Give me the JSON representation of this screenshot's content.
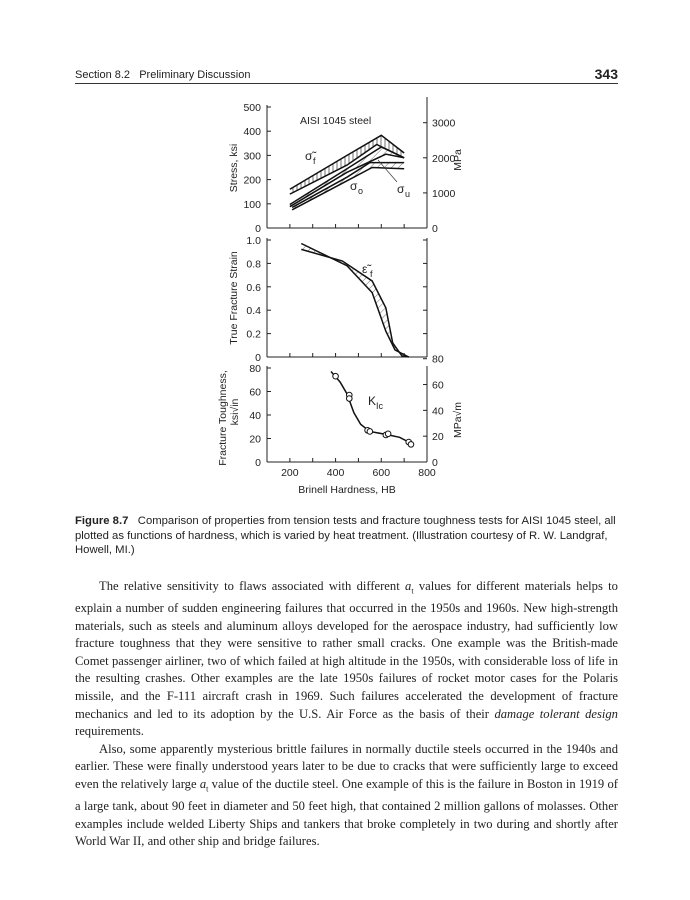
{
  "header": {
    "section": "Section 8.2   Preliminary Discussion",
    "page_number": "343"
  },
  "figure": {
    "material_label": "AISI 1045 steel",
    "top": {
      "ylabel": "Stress, ksi",
      "y2label": "MPa",
      "yticks": [
        "0",
        "100",
        "200",
        "300",
        "400",
        "500"
      ],
      "y2ticks": [
        "0",
        "1000",
        "2000",
        "3000"
      ],
      "labels": {
        "sigma_f": "σ̃",
        "sigma_f_sub": "f",
        "sigma_o": "σ",
        "sigma_o_sub": "o",
        "sigma_u": "σ",
        "sigma_u_sub": "u"
      }
    },
    "middle": {
      "ylabel": "True Fracture Strain",
      "yticks": [
        "0",
        "0.2",
        "0.4",
        "0.6",
        "0.8",
        "1.0"
      ],
      "label": "ε̃",
      "label_sub": "f"
    },
    "bottom": {
      "ylabel1": "Fracture Toughness,",
      "ylabel2": "ksi√in",
      "y2label": "MPa√m",
      "yticks": [
        "0",
        "20",
        "40",
        "60",
        "80"
      ],
      "y2ticks": [
        "0",
        "20",
        "40",
        "60",
        "80"
      ],
      "label": "K",
      "label_sub": "Ic"
    },
    "xticks": [
      "200",
      "400",
      "600",
      "800"
    ],
    "xlabel": "Brinell Hardness, HB"
  },
  "chart_data": {
    "type": "line",
    "x_range": [
      100,
      800
    ],
    "kic_points": [
      [
        400,
        73
      ],
      [
        460,
        57
      ],
      [
        460,
        54
      ],
      [
        540,
        27
      ],
      [
        550,
        26
      ],
      [
        620,
        23
      ],
      [
        630,
        24
      ],
      [
        720,
        17
      ],
      [
        730,
        15
      ]
    ],
    "kic_curve": [
      [
        380,
        77
      ],
      [
        420,
        68
      ],
      [
        450,
        58
      ],
      [
        480,
        42
      ],
      [
        510,
        32
      ],
      [
        550,
        26
      ],
      [
        620,
        23.5
      ],
      [
        680,
        21
      ],
      [
        740,
        15
      ]
    ],
    "ylim_stress": [
      0,
      500
    ],
    "ylim_strain": [
      0,
      1
    ],
    "ylim_kic": [
      0,
      80
    ]
  },
  "caption": {
    "label": "Figure 8.7",
    "text": "Comparison of properties from tension tests and fracture toughness tests for AISI 1045 steel, all plotted as functions of hardness, which is varied by heat treatment. (Illustration courtesy of R. W. Landgraf, Howell, MI.)"
  },
  "paragraphs": [
    {
      "a": "The relative sensitivity to flaws associated with different ",
      "var": "a",
      "sub": "t",
      "b": " values for different materials helps to explain a number of sudden engineering failures that occurred in the 1950s and 1960s. New high-strength materials, such as steels and aluminum alloys developed for the aerospace industry, had sufficiently low fracture toughness that they were sensitive to rather small cracks. One example was the British-made Comet passenger airliner, two of which failed at high altitude in the 1950s, with considerable loss of life in the resulting crashes. Other examples are the late 1950s failures of rocket motor cases for the Polaris missile, and the F-111 aircraft crash in 1969. Such failures accelerated the development of fracture mechanics and led to its adoption by the U.S. Air Force as the basis of their ",
      "em": "damage tolerant design",
      "c": " requirements."
    },
    {
      "a": "Also, some apparently mysterious brittle failures in normally ductile steels occurred in the 1940s and earlier. These were finally understood years later to be due to cracks that were sufficiently large to exceed even the relatively large ",
      "var": "a",
      "sub": "t",
      "b": " value of the ductile steel. One example of this is the failure in Boston in 1919 of a large tank, about 90 feet in diameter and 50 feet high, that contained 2 million gallons of molasses. Other examples include welded Liberty Ships and tankers that broke completely in two during and shortly after World War II, and other ship and bridge failures.",
      "em": "",
      "c": ""
    }
  ]
}
